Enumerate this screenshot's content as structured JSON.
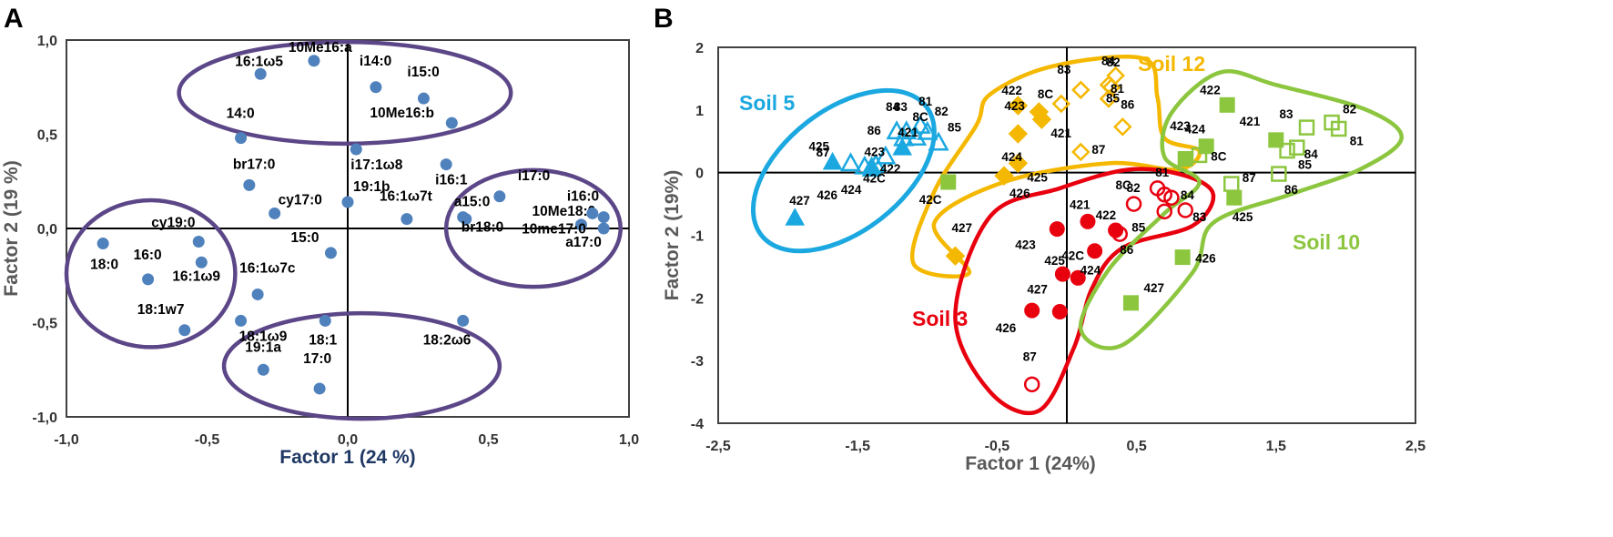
{
  "chart_data": [
    {
      "type": "scatter",
      "panel": "A",
      "xlabel": "Factor 1 (24 %)",
      "ylabel": "Factor 2 (19 %)",
      "xlim": [
        -1.0,
        1.0
      ],
      "ylim": [
        -1.0,
        1.0
      ],
      "xticks": [
        "-1,0",
        "-0,5",
        "0,0",
        "0,5",
        "1,0"
      ],
      "yticks": [
        "1,0",
        "0,5",
        "0,0",
        "-0,5",
        "-1,0"
      ],
      "marker_color": "#4f81bd",
      "ellipse_color": "#5b4687",
      "points": [
        {
          "label": "16:1ω5",
          "x": -0.31,
          "y": 0.82
        },
        {
          "label": "10Me16:a",
          "x": -0.12,
          "y": 0.89
        },
        {
          "label": "i14:0",
          "x": 0.1,
          "y": 0.75
        },
        {
          "label": "i15:0",
          "x": 0.27,
          "y": 0.69
        },
        {
          "label": "10Me16:b",
          "x": 0.37,
          "y": 0.56
        },
        {
          "label": "14:0",
          "x": -0.38,
          "y": 0.48
        },
        {
          "label": "i17:1ω8",
          "x": 0.03,
          "y": 0.42
        },
        {
          "label": "br17:0",
          "x": -0.35,
          "y": 0.23
        },
        {
          "label": "i16:1",
          "x": 0.35,
          "y": 0.34
        },
        {
          "label": "19:1b",
          "x": 0.0,
          "y": 0.14
        },
        {
          "label": "cy17:0",
          "x": -0.26,
          "y": 0.08
        },
        {
          "label": "16:1ω7t",
          "x": 0.21,
          "y": 0.05
        },
        {
          "label": "a15:0",
          "x": 0.41,
          "y": 0.06
        },
        {
          "label": "br18:0",
          "x": 0.42,
          "y": 0.05
        },
        {
          "label": "i17:0",
          "x": 0.54,
          "y": 0.17
        },
        {
          "label": "10Me18:0",
          "x": 0.83,
          "y": 0.02
        },
        {
          "label": "i16:0",
          "x": 0.87,
          "y": 0.08
        },
        {
          "label": "10me17:0",
          "x": 0.91,
          "y": 0.06
        },
        {
          "label": "a17:0",
          "x": 0.91,
          "y": 0.0
        },
        {
          "label": "cy19:0",
          "x": -0.53,
          "y": -0.07
        },
        {
          "label": "18:0",
          "x": -0.87,
          "y": -0.08
        },
        {
          "label": "16:0",
          "x": -0.71,
          "y": -0.27
        },
        {
          "label": "16:1ω9",
          "x": -0.52,
          "y": -0.18
        },
        {
          "label": "15:0",
          "x": -0.06,
          "y": -0.13
        },
        {
          "label": "16:1ω7c",
          "x": -0.32,
          "y": -0.35
        },
        {
          "label": "18:1w7",
          "x": -0.58,
          "y": -0.54
        },
        {
          "label": "18:1ω9",
          "x": -0.38,
          "y": -0.49
        },
        {
          "label": "18:1",
          "x": -0.08,
          "y": -0.49
        },
        {
          "label": "19:1a",
          "x": -0.3,
          "y": -0.75
        },
        {
          "label": "17:0",
          "x": -0.1,
          "y": -0.85
        },
        {
          "label": "18:2ω6",
          "x": 0.41,
          "y": -0.49
        }
      ]
    },
    {
      "type": "scatter",
      "panel": "B",
      "xlabel": "Factor 1 (24%)",
      "ylabel": "Factor 2 (19%)",
      "xlim": [
        -2.5,
        2.5
      ],
      "ylim": [
        -4,
        2
      ],
      "xticks": [
        "-2,5",
        "-1,5",
        "-0,5",
        "0,5",
        "1,5",
        "2,5"
      ],
      "yticks": [
        "2",
        "1",
        "0",
        "-1",
        "-2",
        "-3",
        "-4"
      ],
      "groups": [
        {
          "name": "Soil 5",
          "color": "#1ba8e0",
          "marker": "triangle",
          "filled": [
            {
              "label": "87",
              "x": -1.68,
              "y": 0.17
            },
            {
              "label": "423",
              "x": -1.4,
              "y": 0.06
            },
            {
              "label": "421",
              "x": -1.18,
              "y": 0.4
            },
            {
              "label": "426",
              "x": -1.4,
              "y": 0.1
            },
            {
              "label": "427",
              "x": -1.95,
              "y": -0.72
            }
          ],
          "open": [
            {
              "label": "81",
              "x": -1.05,
              "y": 0.75
            },
            {
              "label": "82",
              "x": -1.0,
              "y": 0.65
            },
            {
              "label": "84",
              "x": -1.22,
              "y": 0.66
            },
            {
              "label": "83",
              "x": -1.15,
              "y": 0.66
            },
            {
              "label": "86",
              "x": -1.17,
              "y": 0.55
            },
            {
              "label": "8C",
              "x": -1.08,
              "y": 0.56
            },
            {
              "label": "85",
              "x": -0.92,
              "y": 0.48
            },
            {
              "label": "425",
              "x": -1.55,
              "y": 0.15
            },
            {
              "label": "424",
              "x": -1.45,
              "y": 0.1
            },
            {
              "label": "422",
              "x": -1.3,
              "y": 0.26
            },
            {
              "label": "42C",
              "x": -1.37,
              "y": 0.13
            }
          ]
        },
        {
          "name": "Soil 12",
          "color": "#f5b800",
          "marker": "diamond",
          "filled": [
            {
              "label": "422",
              "x": -0.35,
              "y": 1.07
            },
            {
              "label": "423",
              "x": -0.2,
              "y": 0.97
            },
            {
              "label": "421",
              "x": -0.18,
              "y": 0.85
            },
            {
              "label": "424",
              "x": -0.35,
              "y": 0.62
            },
            {
              "label": "425",
              "x": -0.35,
              "y": 0.15
            },
            {
              "label": "426",
              "x": -0.45,
              "y": -0.05
            },
            {
              "label": "427",
              "x": -0.8,
              "y": -1.33
            }
          ],
          "open": [
            {
              "label": "83",
              "x": 0.1,
              "y": 1.32
            },
            {
              "label": "84",
              "x": 0.3,
              "y": 1.4
            },
            {
              "label": "82",
              "x": 0.35,
              "y": 1.55
            },
            {
              "label": "81",
              "x": 0.32,
              "y": 1.36
            },
            {
              "label": "85",
              "x": 0.3,
              "y": 1.18
            },
            {
              "label": "8C",
              "x": -0.04,
              "y": 1.1
            },
            {
              "label": "86",
              "x": 0.4,
              "y": 0.73
            },
            {
              "label": "87",
              "x": 0.1,
              "y": 0.33
            }
          ]
        },
        {
          "name": "Soil 3",
          "color": "#e8000f",
          "marker": "circle",
          "filled": [
            {
              "label": "421",
              "x": 0.15,
              "y": -0.78
            },
            {
              "label": "422",
              "x": 0.35,
              "y": -0.92
            },
            {
              "label": "423",
              "x": -0.07,
              "y": -0.9
            },
            {
              "label": "424",
              "x": 0.2,
              "y": -1.25
            },
            {
              "label": "425",
              "x": -0.03,
              "y": -1.62
            },
            {
              "label": "42C",
              "x": 0.08,
              "y": -1.68
            },
            {
              "label": "426",
              "x": -0.25,
              "y": -2.2
            },
            {
              "label": "427",
              "x": -0.05,
              "y": -2.22
            }
          ],
          "open": [
            {
              "label": "8C",
              "x": 0.48,
              "y": -0.5
            },
            {
              "label": "82",
              "x": 0.65,
              "y": -0.25
            },
            {
              "label": "81",
              "x": 0.7,
              "y": -0.35
            },
            {
              "label": "84",
              "x": 0.75,
              "y": -0.4
            },
            {
              "label": "83",
              "x": 0.85,
              "y": -0.6
            },
            {
              "label": "85",
              "x": 0.7,
              "y": -0.62
            },
            {
              "label": "86",
              "x": 0.38,
              "y": -0.98
            },
            {
              "label": "87",
              "x": -0.25,
              "y": -3.38
            }
          ]
        },
        {
          "name": "Soil 10",
          "color": "#8cc63f",
          "marker": "square",
          "filled": [
            {
              "label": "422",
              "x": 1.15,
              "y": 1.08
            },
            {
              "label": "423",
              "x": 1.0,
              "y": 0.42
            },
            {
              "label": "8C",
              "x": 0.85,
              "y": 0.22
            },
            {
              "label": "421",
              "x": 1.5,
              "y": 0.52
            },
            {
              "label": "425",
              "x": 1.2,
              "y": -0.4
            },
            {
              "label": "42C",
              "x": -0.85,
              "y": -0.15
            },
            {
              "label": "426",
              "x": 0.83,
              "y": -1.35
            },
            {
              "label": "427",
              "x": 0.46,
              "y": -2.08
            }
          ],
          "open": [
            {
              "label": "83",
              "x": 1.72,
              "y": 0.72
            },
            {
              "label": "82",
              "x": 1.9,
              "y": 0.8
            },
            {
              "label": "81",
              "x": 1.95,
              "y": 0.7
            },
            {
              "label": "84",
              "x": 1.65,
              "y": 0.4
            },
            {
              "label": "85",
              "x": 1.58,
              "y": 0.35
            },
            {
              "label": "86",
              "x": 1.52,
              "y": -0.02
            },
            {
              "label": "87",
              "x": 1.18,
              "y": -0.18
            },
            {
              "label": "424",
              "x": 0.95,
              "y": 0.28
            }
          ]
        }
      ]
    }
  ]
}
